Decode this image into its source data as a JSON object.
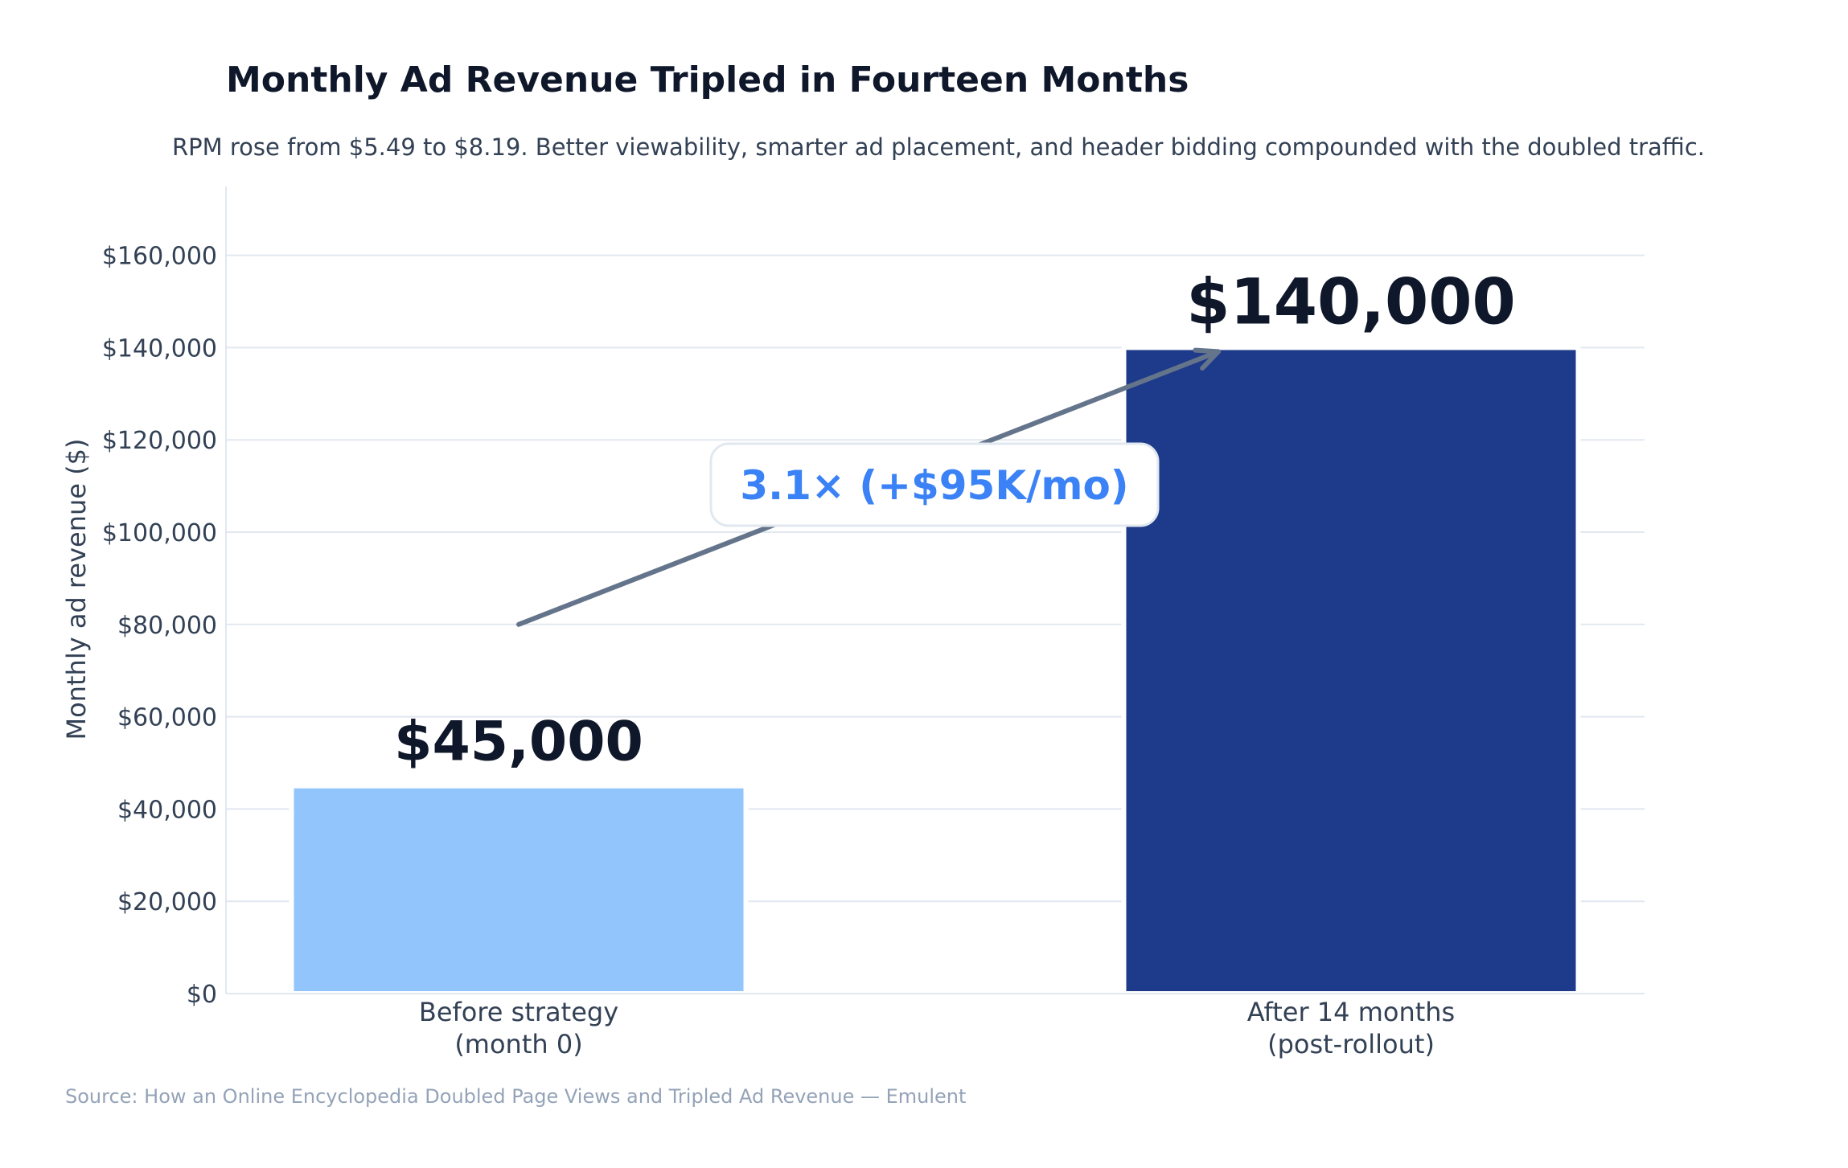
{
  "chart_data": {
    "type": "bar",
    "title": "Monthly Ad Revenue Tripled in Fourteen Months",
    "subtitle": "RPM rose from $5.49 to $8.19. Better viewability, smarter ad placement, and header bidding compounded with the doubled traffic.",
    "ylabel": "Monthly ad revenue ($)",
    "xlabel": "",
    "categories": [
      [
        "Before strategy",
        "(month 0)"
      ],
      [
        "After 14 months",
        "(post-rollout)"
      ]
    ],
    "values": [
      45000,
      140000
    ],
    "value_labels": [
      "$45,000",
      "$140,000"
    ],
    "bar_colors": [
      "#93c5fd",
      "#1e3a8a"
    ],
    "ylim": [
      0,
      175000
    ],
    "yticks": [
      0,
      20000,
      40000,
      60000,
      80000,
      100000,
      120000,
      140000,
      160000
    ],
    "ytick_labels": [
      "$0",
      "$20,000",
      "$40,000",
      "$60,000",
      "$80,000",
      "$100,000",
      "$120,000",
      "$140,000",
      "$160,000"
    ],
    "grid": true,
    "annotation": {
      "text": "3.1×  (+$95K/mo)",
      "arrow_from": {
        "category": 0,
        "y": 80000
      },
      "arrow_to": {
        "category": 1,
        "y": 140000
      },
      "color": "#3b82f6"
    },
    "source": "Source: How an Online Encyclopedia Doubled Page Views and Tripled Ad Revenue — Emulent"
  },
  "colors": {
    "grid": "#e2e8f0",
    "axis": "#e2e8f0",
    "arrow": "#64748b",
    "text_dark": "#0f172a",
    "text_mid": "#334155",
    "text_light": "#94a3b8"
  }
}
